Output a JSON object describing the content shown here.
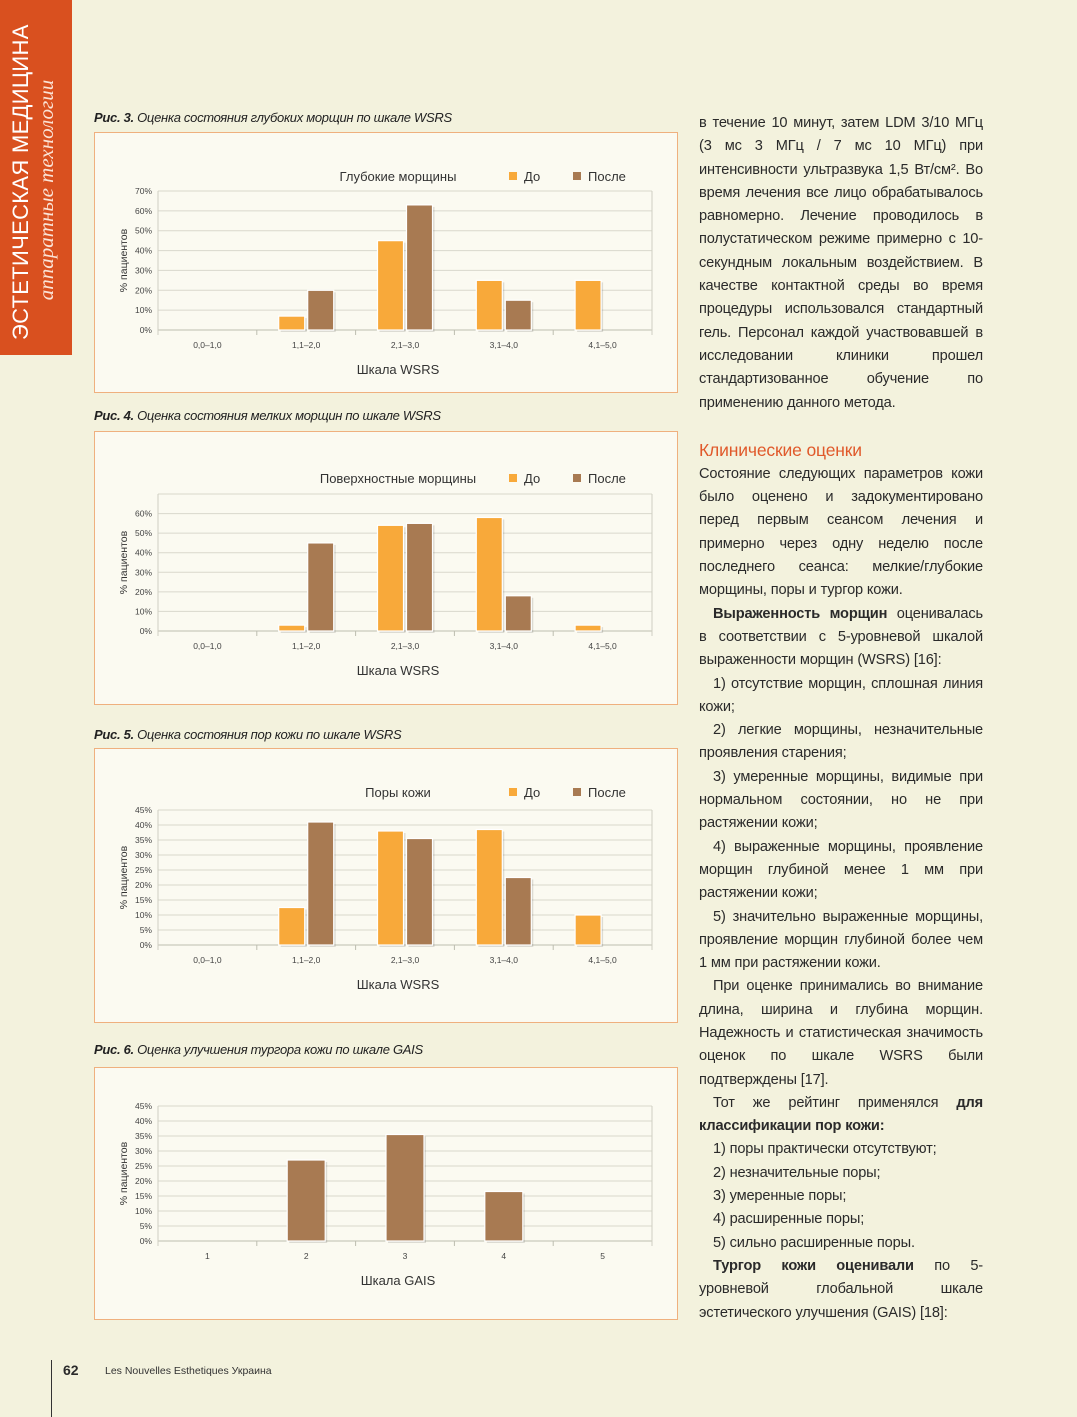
{
  "sidebar": {
    "title": "ЭСТЕТИЧЕСКАЯ МЕДИЦИНА",
    "subtitle": "аппаратные технологии",
    "color": "#d9501f"
  },
  "figures": [
    {
      "label": "Рис. 3.",
      "caption": "Оценка состояния глубоких морщин по шкале WSRS"
    },
    {
      "label": "Рис. 4.",
      "caption": "Оценка состояния мелких морщин по шкале WSRS"
    },
    {
      "label": "Рис. 5.",
      "caption": "Оценка состояния пор кожи по шкале WSRS"
    },
    {
      "label": "Рис. 6.",
      "caption": "Оценка улучшения тургора кожи по шкале GAIS"
    }
  ],
  "chart_data": [
    {
      "type": "bar",
      "title": "Глубокие морщины",
      "xlabel": "Шкала WSRS",
      "ylabel": "% пациентов",
      "categories": [
        "0,0–1,0",
        "1,1–2,0",
        "2,1–3,0",
        "3,1–4,0",
        "4,1–5,0"
      ],
      "yticks": [
        "0%",
        "10%",
        "20%",
        "30%",
        "40%",
        "50%",
        "60%",
        "70%"
      ],
      "ylim": [
        0,
        70
      ],
      "grid": true,
      "legend": "top-right",
      "series": [
        {
          "name": "До",
          "color": "#f8a93a",
          "values": [
            0,
            7,
            45,
            25,
            25
          ]
        },
        {
          "name": "После",
          "color": "#a87a52",
          "values": [
            0,
            20,
            63,
            15,
            0
          ]
        }
      ]
    },
    {
      "type": "bar",
      "title": "Поверхностные морщины",
      "xlabel": "Шкала WSRS",
      "ylabel": "% пациентов",
      "categories": [
        "0,0–1,0",
        "1,1–2,0",
        "2,1–3,0",
        "3,1–4,0",
        "4,1–5,0"
      ],
      "yticks": [
        "0%",
        "10%",
        "20%",
        "30%",
        "40%",
        "50%",
        "60%"
      ],
      "ylim": [
        0,
        70
      ],
      "grid": true,
      "legend": "top-right",
      "series": [
        {
          "name": "До",
          "color": "#f8a93a",
          "values": [
            0,
            3,
            54,
            58,
            3
          ]
        },
        {
          "name": "После",
          "color": "#a87a52",
          "values": [
            0,
            45,
            55,
            18,
            0
          ]
        }
      ]
    },
    {
      "type": "bar",
      "title": "Поры кожи",
      "xlabel": "Шкала WSRS",
      "ylabel": "% пациентов",
      "categories": [
        "0,0–1,0",
        "1,1–2,0",
        "2,1–3,0",
        "3,1–4,0",
        "4,1–5,0"
      ],
      "yticks": [
        "0%",
        "5%",
        "10%",
        "15%",
        "20%",
        "25%",
        "30%",
        "35%",
        "40%",
        "45%"
      ],
      "ylim": [
        0,
        45
      ],
      "grid": true,
      "legend": "top-right",
      "series": [
        {
          "name": "До",
          "color": "#f8a93a",
          "values": [
            0,
            12.5,
            38,
            38.5,
            10
          ]
        },
        {
          "name": "После",
          "color": "#a87a52",
          "values": [
            0,
            41,
            35.5,
            22.5,
            0
          ]
        }
      ]
    },
    {
      "type": "bar",
      "title": "",
      "xlabel": "Шкала GAIS",
      "ylabel": "% пациентов",
      "categories": [
        "1",
        "2",
        "3",
        "4",
        "5"
      ],
      "yticks": [
        "0%",
        "5%",
        "10%",
        "15%",
        "20%",
        "25%",
        "30%",
        "35%",
        "40%",
        "45%"
      ],
      "ylim": [
        0,
        45
      ],
      "grid": true,
      "legend": "none",
      "series": [
        {
          "color": "#a87a52",
          "values": [
            0,
            27,
            35.5,
            16.5,
            0
          ]
        }
      ]
    }
  ],
  "article": {
    "p1": "в течение 10 минут, затем LDM 3/10 МГц (3 мс 3 МГц / 7 мс 10 МГц) при интенсивности ультразвука 1,5 Вт/см². Во время лечения все лицо обрабатывалось равномерно. Лечение проводилось в полустатическом режиме примерно с 10-секундным локальным воздействием. В качестве контактной среды во время процедуры использовался стандартный гель. Персонал каждой участвовавшей в исследовании клиники прошел стандартизованное обучение по применению данного метода.",
    "heading": "Клинические оценки",
    "heading_color": "#e0592a",
    "p2": "Состояние следующих параметров кожи было оценено и задокументировано перед первым сеансом лечения и примерно через одну неделю после последнего сеанса: мелкие/глубокие морщины, поры и тургор кожи.",
    "p3_bold": "Выраженность морщин",
    "p3_rest": " оценивалась в соответствии с 5-уровневой шкалой выраженности морщин (WSRS) [16]:",
    "wsrs_list": [
      "1) отсутствие морщин, сплошная линия кожи;",
      "2) легкие морщины, незначительные проявления старения;",
      "3) умеренные морщины, видимые при нормальном состоянии, но не при растяжении кожи;",
      "4) выраженные морщины, проявление морщин глубиной менее 1 мм при растяжении кожи;",
      "5) значительно выраженные морщины, проявление морщин глубиной более чем 1 мм при растяжении кожи."
    ],
    "p4": "При оценке принимались во внимание длина, ширина и глубина морщин. Надежность и статистическая значимость оценок по шкале WSRS были подтверждены [17].",
    "p5_rest": "Тот же рейтинг применялся ",
    "p5_bold": "для классификации пор кожи:",
    "pores_list": [
      "1) поры практически отсутствуют;",
      "2) незначительные поры;",
      "3) умеренные поры;",
      "4) расширенные поры;",
      "5) сильно расширенные поры."
    ],
    "p6_bold": "Тургор кожи оценивали",
    "p6_rest": " по 5-уровневой глобальной шкале эстетического улучшения (GAIS) [18]:"
  },
  "footer": {
    "page_number": "62",
    "journal": "Les Nouvelles Esthetiques Украина"
  }
}
